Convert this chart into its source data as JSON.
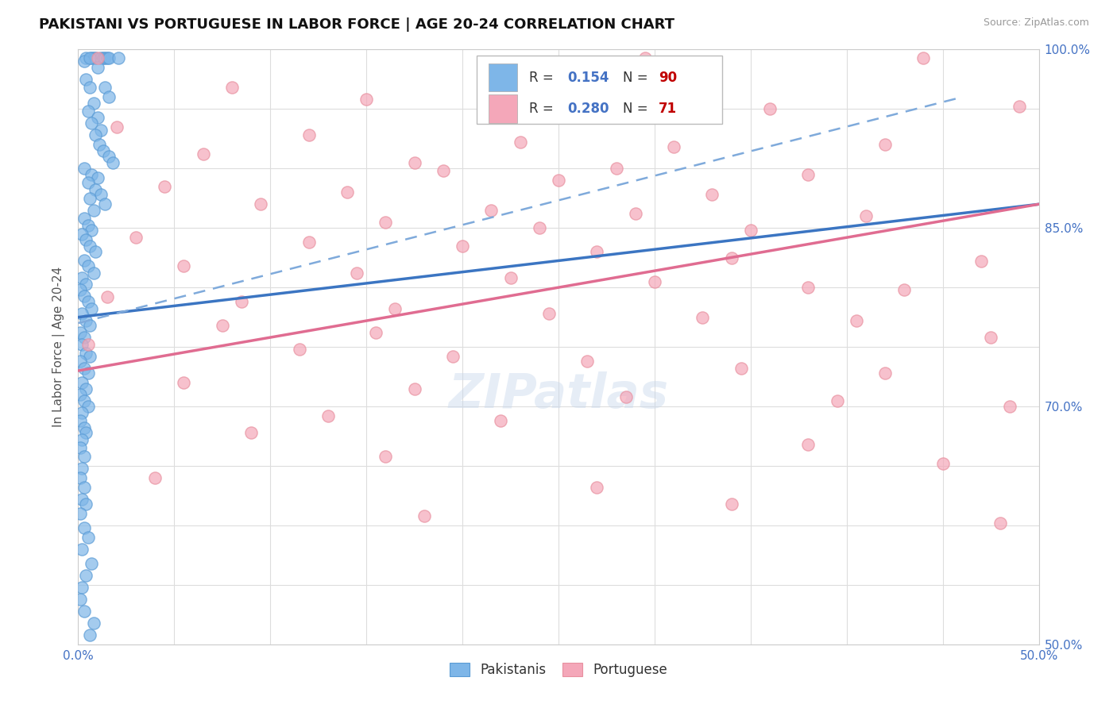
{
  "title": "PAKISTANI VS PORTUGUESE IN LABOR FORCE | AGE 20-24 CORRELATION CHART",
  "source": "Source: ZipAtlas.com",
  "ylabel": "In Labor Force | Age 20-24",
  "xlim": [
    0.0,
    0.5
  ],
  "ylim": [
    0.5,
    1.0
  ],
  "xticks": [
    0.0,
    0.05,
    0.1,
    0.15,
    0.2,
    0.25,
    0.3,
    0.35,
    0.4,
    0.45,
    0.5
  ],
  "yticks": [
    0.5,
    0.55,
    0.6,
    0.65,
    0.7,
    0.75,
    0.8,
    0.85,
    0.9,
    0.95,
    1.0
  ],
  "ytick_labels": {
    "0.50": "50.0%",
    "0.55": "",
    "0.60": "",
    "0.65": "",
    "0.70": "70.0%",
    "0.75": "",
    "0.80": "",
    "0.85": "85.0%",
    "0.90": "",
    "0.95": "",
    "1.00": "100.0%"
  },
  "pakistani_color": "#7EB6E8",
  "portuguese_color": "#F4A7B9",
  "blue_line_color": "#3B75C2",
  "pink_line_color": "#E06C91",
  "blue_dash_color": "#7FAADB",
  "watermark": "ZIPatlas",
  "pakistani_R": 0.154,
  "pakistani_N": 90,
  "portuguese_R": 0.28,
  "portuguese_N": 71,
  "r_label_color": "#4472C4",
  "n_label_color": "#C00000",
  "blue_trend": [
    0.0,
    0.775,
    0.5,
    0.87
  ],
  "pink_trend": [
    0.0,
    0.73,
    0.5,
    0.87
  ],
  "blue_dash_trend": [
    0.0,
    0.77,
    0.46,
    0.96
  ],
  "pakistani_scatter": [
    [
      0.004,
      0.993
    ],
    [
      0.007,
      0.993
    ],
    [
      0.008,
      0.993
    ],
    [
      0.009,
      0.993
    ],
    [
      0.012,
      0.993
    ],
    [
      0.013,
      0.993
    ],
    [
      0.014,
      0.993
    ],
    [
      0.015,
      0.993
    ],
    [
      0.016,
      0.993
    ],
    [
      0.021,
      0.993
    ],
    [
      0.003,
      0.99
    ],
    [
      0.006,
      0.993
    ],
    [
      0.01,
      0.985
    ],
    [
      0.004,
      0.975
    ],
    [
      0.006,
      0.968
    ],
    [
      0.014,
      0.968
    ],
    [
      0.016,
      0.96
    ],
    [
      0.008,
      0.955
    ],
    [
      0.005,
      0.948
    ],
    [
      0.01,
      0.943
    ],
    [
      0.007,
      0.938
    ],
    [
      0.012,
      0.932
    ],
    [
      0.009,
      0.928
    ],
    [
      0.011,
      0.92
    ],
    [
      0.013,
      0.915
    ],
    [
      0.016,
      0.91
    ],
    [
      0.018,
      0.905
    ],
    [
      0.003,
      0.9
    ],
    [
      0.007,
      0.895
    ],
    [
      0.01,
      0.892
    ],
    [
      0.005,
      0.888
    ],
    [
      0.009,
      0.882
    ],
    [
      0.012,
      0.878
    ],
    [
      0.006,
      0.875
    ],
    [
      0.014,
      0.87
    ],
    [
      0.008,
      0.865
    ],
    [
      0.003,
      0.858
    ],
    [
      0.005,
      0.852
    ],
    [
      0.007,
      0.848
    ],
    [
      0.002,
      0.845
    ],
    [
      0.004,
      0.84
    ],
    [
      0.006,
      0.835
    ],
    [
      0.009,
      0.83
    ],
    [
      0.003,
      0.823
    ],
    [
      0.005,
      0.818
    ],
    [
      0.008,
      0.812
    ],
    [
      0.002,
      0.808
    ],
    [
      0.004,
      0.803
    ],
    [
      0.001,
      0.798
    ],
    [
      0.003,
      0.793
    ],
    [
      0.005,
      0.788
    ],
    [
      0.007,
      0.782
    ],
    [
      0.002,
      0.778
    ],
    [
      0.004,
      0.772
    ],
    [
      0.006,
      0.768
    ],
    [
      0.001,
      0.762
    ],
    [
      0.003,
      0.758
    ],
    [
      0.002,
      0.752
    ],
    [
      0.004,
      0.745
    ],
    [
      0.006,
      0.742
    ],
    [
      0.001,
      0.738
    ],
    [
      0.003,
      0.732
    ],
    [
      0.005,
      0.728
    ],
    [
      0.002,
      0.72
    ],
    [
      0.004,
      0.715
    ],
    [
      0.001,
      0.71
    ],
    [
      0.003,
      0.705
    ],
    [
      0.005,
      0.7
    ],
    [
      0.002,
      0.695
    ],
    [
      0.001,
      0.688
    ],
    [
      0.003,
      0.682
    ],
    [
      0.004,
      0.678
    ],
    [
      0.002,
      0.672
    ],
    [
      0.001,
      0.665
    ],
    [
      0.003,
      0.658
    ],
    [
      0.002,
      0.648
    ],
    [
      0.001,
      0.64
    ],
    [
      0.003,
      0.632
    ],
    [
      0.002,
      0.622
    ],
    [
      0.004,
      0.618
    ],
    [
      0.001,
      0.61
    ],
    [
      0.003,
      0.598
    ],
    [
      0.005,
      0.59
    ],
    [
      0.002,
      0.58
    ],
    [
      0.007,
      0.568
    ],
    [
      0.004,
      0.558
    ],
    [
      0.002,
      0.548
    ],
    [
      0.001,
      0.538
    ],
    [
      0.003,
      0.528
    ],
    [
      0.008,
      0.518
    ],
    [
      0.006,
      0.508
    ]
  ],
  "portuguese_scatter": [
    [
      0.01,
      0.993
    ],
    [
      0.295,
      0.993
    ],
    [
      0.44,
      0.993
    ],
    [
      0.08,
      0.968
    ],
    [
      0.15,
      0.958
    ],
    [
      0.36,
      0.95
    ],
    [
      0.49,
      0.952
    ],
    [
      0.02,
      0.935
    ],
    [
      0.12,
      0.928
    ],
    [
      0.23,
      0.922
    ],
    [
      0.31,
      0.918
    ],
    [
      0.42,
      0.92
    ],
    [
      0.065,
      0.912
    ],
    [
      0.175,
      0.905
    ],
    [
      0.28,
      0.9
    ],
    [
      0.19,
      0.898
    ],
    [
      0.38,
      0.895
    ],
    [
      0.25,
      0.89
    ],
    [
      0.045,
      0.885
    ],
    [
      0.14,
      0.88
    ],
    [
      0.33,
      0.878
    ],
    [
      0.095,
      0.87
    ],
    [
      0.215,
      0.865
    ],
    [
      0.29,
      0.862
    ],
    [
      0.41,
      0.86
    ],
    [
      0.16,
      0.855
    ],
    [
      0.24,
      0.85
    ],
    [
      0.35,
      0.848
    ],
    [
      0.03,
      0.842
    ],
    [
      0.12,
      0.838
    ],
    [
      0.2,
      0.835
    ],
    [
      0.27,
      0.83
    ],
    [
      0.34,
      0.825
    ],
    [
      0.47,
      0.822
    ],
    [
      0.055,
      0.818
    ],
    [
      0.145,
      0.812
    ],
    [
      0.225,
      0.808
    ],
    [
      0.3,
      0.805
    ],
    [
      0.38,
      0.8
    ],
    [
      0.43,
      0.798
    ],
    [
      0.015,
      0.792
    ],
    [
      0.085,
      0.788
    ],
    [
      0.165,
      0.782
    ],
    [
      0.245,
      0.778
    ],
    [
      0.325,
      0.775
    ],
    [
      0.405,
      0.772
    ],
    [
      0.075,
      0.768
    ],
    [
      0.155,
      0.762
    ],
    [
      0.475,
      0.758
    ],
    [
      0.005,
      0.752
    ],
    [
      0.115,
      0.748
    ],
    [
      0.195,
      0.742
    ],
    [
      0.265,
      0.738
    ],
    [
      0.345,
      0.732
    ],
    [
      0.42,
      0.728
    ],
    [
      0.055,
      0.72
    ],
    [
      0.175,
      0.715
    ],
    [
      0.285,
      0.708
    ],
    [
      0.395,
      0.705
    ],
    [
      0.485,
      0.7
    ],
    [
      0.13,
      0.692
    ],
    [
      0.22,
      0.688
    ],
    [
      0.09,
      0.678
    ],
    [
      0.38,
      0.668
    ],
    [
      0.16,
      0.658
    ],
    [
      0.45,
      0.652
    ],
    [
      0.04,
      0.64
    ],
    [
      0.27,
      0.632
    ],
    [
      0.34,
      0.618
    ],
    [
      0.18,
      0.608
    ],
    [
      0.48,
      0.602
    ]
  ]
}
